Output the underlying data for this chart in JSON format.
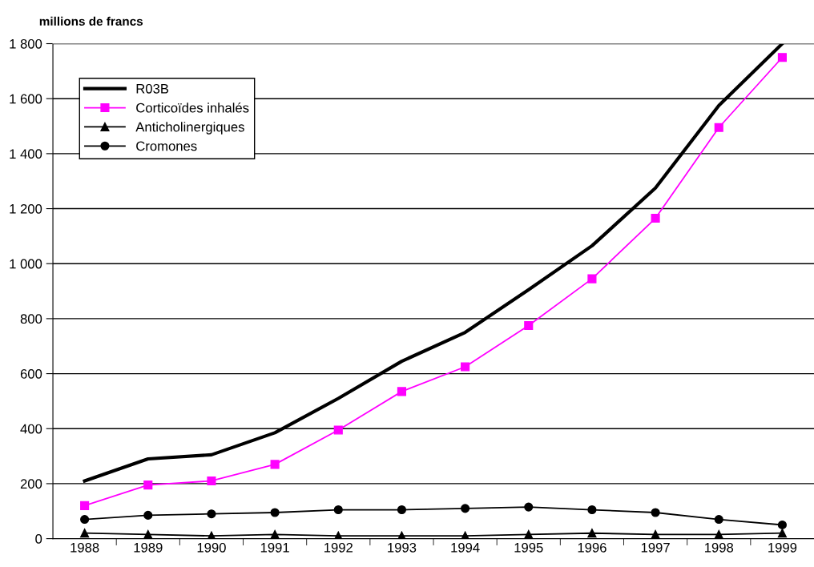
{
  "chart_data": {
    "type": "line",
    "ylabel": "millions de francs",
    "categories": [
      "1988",
      "1989",
      "1990",
      "1991",
      "1992",
      "1993",
      "1994",
      "1995",
      "1996",
      "1997",
      "1998",
      "1999"
    ],
    "series": [
      {
        "name": "R03B",
        "color": "#000000",
        "marker": "none",
        "values": [
          210,
          290,
          305,
          385,
          510,
          645,
          750,
          905,
          1065,
          1275,
          1575,
          1800
        ]
      },
      {
        "name": "Corticoïdes inhalés",
        "color": "#ff00ff",
        "marker": "square",
        "values": [
          120,
          195,
          210,
          270,
          395,
          535,
          625,
          775,
          945,
          1165,
          1495,
          1750
        ]
      },
      {
        "name": "Anticholinergiques",
        "color": "#000000",
        "marker": "triangle",
        "values": [
          20,
          15,
          10,
          15,
          10,
          10,
          10,
          15,
          20,
          15,
          15,
          20
        ]
      },
      {
        "name": "Cromones",
        "color": "#000000",
        "marker": "circle",
        "values": [
          70,
          85,
          90,
          95,
          105,
          105,
          110,
          115,
          105,
          95,
          70,
          50
        ]
      }
    ],
    "ylim": [
      0,
      1800
    ],
    "yticks": [
      0,
      200,
      400,
      600,
      800,
      {
        "value": 1000,
        "label": "1 000"
      },
      {
        "value": 1200,
        "label": "1 200"
      },
      {
        "value": 1400,
        "label": "1 400"
      },
      {
        "value": 1600,
        "label": "1 600"
      },
      {
        "value": 1800,
        "label": "1 800"
      }
    ],
    "grid": "y",
    "legend": "top left"
  }
}
